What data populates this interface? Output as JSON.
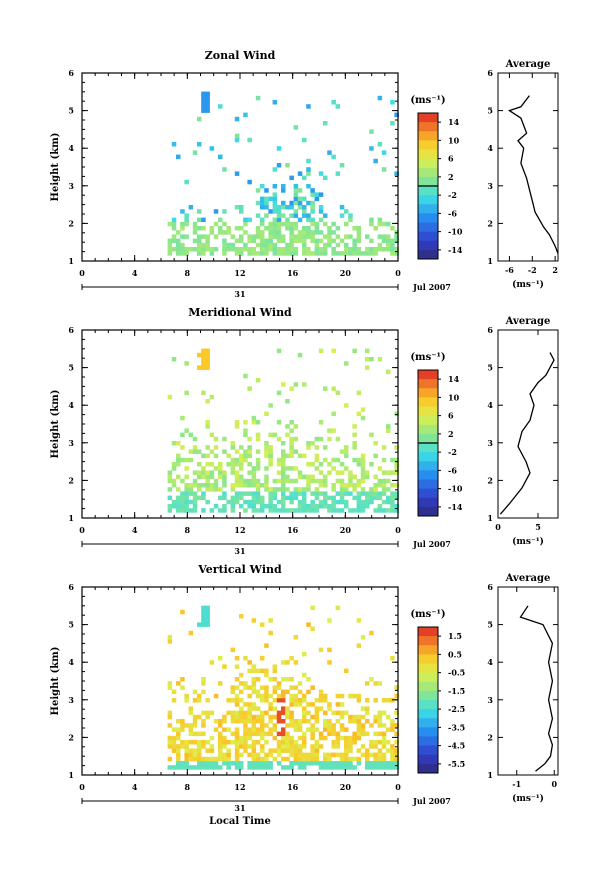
{
  "chart_data": [
    {
      "type": "heatmap",
      "title": "Zonal Wind",
      "ylabel": "Height (km)",
      "xticks": [
        "0",
        "4",
        "8",
        "12",
        "16",
        "20",
        "0"
      ],
      "yticks": [
        "1",
        "2",
        "3",
        "4",
        "5",
        "6"
      ],
      "ylim": [
        1,
        6
      ],
      "xlim": [
        0,
        24
      ],
      "date_label": "31",
      "month_label": "Jul 2007",
      "colorbar": {
        "unit": "(ms⁻¹)",
        "ticks": [
          "14",
          "10",
          "6",
          "2",
          "-2",
          "-6",
          "-10",
          "-14"
        ],
        "range": [
          -16,
          16
        ],
        "zero_line": 0
      },
      "profile": {
        "title": "Average",
        "xlabel": "(ms⁻¹)",
        "xticks": [
          "-6",
          "-2",
          "2"
        ],
        "xlim": [
          -8,
          2.5
        ],
        "points": [
          [
            -2.5,
            5.4
          ],
          [
            -4,
            5.1
          ],
          [
            -6,
            5.0
          ],
          [
            -4,
            4.8
          ],
          [
            -3,
            4.4
          ],
          [
            -4.5,
            4.2
          ],
          [
            -3.5,
            4.0
          ],
          [
            -4,
            3.6
          ],
          [
            -3,
            3.2
          ],
          [
            -2,
            2.6
          ],
          [
            -1.5,
            2.3
          ],
          [
            0,
            1.9
          ],
          [
            1,
            1.7
          ],
          [
            2,
            1.4
          ],
          [
            2.5,
            1.2
          ]
        ]
      }
    },
    {
      "type": "heatmap",
      "title": "Meridional Wind",
      "ylabel": "Height (km)",
      "xticks": [
        "0",
        "4",
        "8",
        "12",
        "16",
        "20",
        "0"
      ],
      "yticks": [
        "1",
        "2",
        "3",
        "4",
        "5",
        "6"
      ],
      "ylim": [
        1,
        6
      ],
      "xlim": [
        0,
        24
      ],
      "date_label": "31",
      "month_label": "Jul 2007",
      "colorbar": {
        "unit": "(ms⁻¹)",
        "ticks": [
          "14",
          "10",
          "6",
          "2",
          "-2",
          "-6",
          "-10",
          "-14"
        ],
        "range": [
          -16,
          16
        ],
        "zero_line": 0
      },
      "profile": {
        "title": "Average",
        "xlabel": "(ms⁻¹)",
        "xticks": [
          "0",
          "5"
        ],
        "xlim": [
          0,
          7.5
        ],
        "points": [
          [
            6.5,
            5.4
          ],
          [
            7,
            5.2
          ],
          [
            6.5,
            5.0
          ],
          [
            6,
            4.8
          ],
          [
            5,
            4.6
          ],
          [
            4,
            4.3
          ],
          [
            4.5,
            4.0
          ],
          [
            4,
            3.6
          ],
          [
            3,
            3.3
          ],
          [
            2.5,
            2.9
          ],
          [
            3.5,
            2.5
          ],
          [
            4,
            2.2
          ],
          [
            3,
            1.8
          ],
          [
            1.5,
            1.4
          ],
          [
            0.3,
            1.1
          ]
        ]
      }
    },
    {
      "type": "heatmap",
      "title": "Vertical Wind",
      "ylabel": "Height (km)",
      "xlabel": "Local Time",
      "xticks": [
        "0",
        "4",
        "8",
        "12",
        "16",
        "20",
        "0"
      ],
      "yticks": [
        "1",
        "2",
        "3",
        "4",
        "5",
        "6"
      ],
      "ylim": [
        1,
        6
      ],
      "xlim": [
        0,
        24
      ],
      "date_label": "31",
      "month_label": "Jul 2007",
      "colorbar": {
        "unit": "(ms⁻¹)",
        "ticks": [
          "1.5",
          "0.5",
          "-0.5",
          "-1.5",
          "-2.5",
          "-3.5",
          "-4.5",
          "-5.5"
        ],
        "range": [
          -6,
          2
        ]
      },
      "profile": {
        "title": "Average",
        "xlabel": "(ms⁻¹)",
        "xticks": [
          "-1",
          "0"
        ],
        "xlim": [
          -1.5,
          0.1
        ],
        "points": [
          [
            -0.7,
            5.5
          ],
          [
            -0.9,
            5.2
          ],
          [
            -0.3,
            5.0
          ],
          [
            -0.05,
            4.5
          ],
          [
            -0.15,
            4.0
          ],
          [
            -0.05,
            3.5
          ],
          [
            -0.15,
            3.0
          ],
          [
            -0.05,
            2.5
          ],
          [
            -0.15,
            2.1
          ],
          [
            -0.05,
            1.8
          ],
          [
            -0.1,
            1.5
          ],
          [
            -0.25,
            1.3
          ],
          [
            -0.5,
            1.1
          ]
        ]
      }
    }
  ]
}
